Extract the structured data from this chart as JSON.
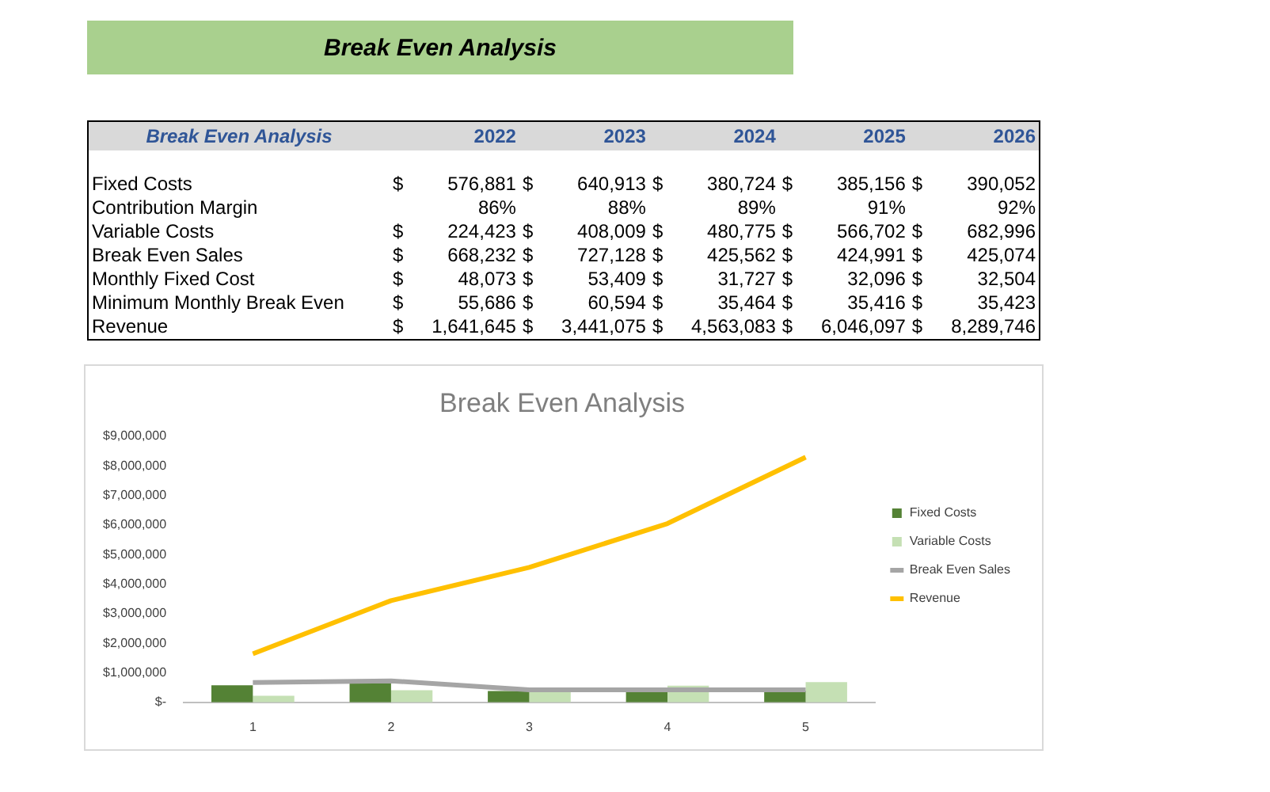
{
  "chart_data": [
    {
      "type": "heatmap",
      "title": "Break Even Analysis",
      "subtitle": "Break Even Analysis",
      "categories": [
        "2022",
        "2023",
        "2024",
        "2025",
        "2026"
      ],
      "y_categories": [
        "Fixed Costs",
        "Contribution Margin",
        "Variable Costs",
        "Break Even Sales",
        "Monthly Fixed Cost",
        "Minimum Monthly Break Even",
        "Revenue"
      ],
      "cells": [
        [
          576881,
          640913,
          380724,
          385156,
          390052
        ],
        [
          86,
          88,
          89,
          91,
          92
        ],
        [
          224423,
          408009,
          480775,
          566702,
          682996
        ],
        [
          668232,
          727128,
          425562,
          424991,
          425074
        ],
        [
          48073,
          53409,
          31727,
          32096,
          32504
        ],
        [
          55686,
          60594,
          35464,
          35416,
          35423
        ],
        [
          1641645,
          3441075,
          4563083,
          6046097,
          8289746
        ]
      ],
      "cell_labels": [
        [
          "$ 576,881",
          "$ 640,913",
          "$ 380,724",
          "$ 385,156",
          "$ 390,052"
        ],
        [
          "86%",
          "88%",
          "89%",
          "91%",
          "92%"
        ],
        [
          "$ 224,423",
          "$ 408,009",
          "$ 480,775",
          "$ 566,702",
          "$ 682,996"
        ],
        [
          "$ 668,232",
          "$ 727,128",
          "$ 425,562",
          "$ 424,991",
          "$ 425,074"
        ],
        [
          "$ 48,073",
          "$ 53,409",
          "$ 31,727",
          "$ 32,096",
          "$ 32,504"
        ],
        [
          "$ 55,686",
          "$ 60,594",
          "$ 35,464",
          "$ 35,416",
          "$ 35,423"
        ],
        [
          "$ 1,641,645",
          "$ 3,441,075",
          "$ 4,563,083",
          "$ 6,046,097",
          "$ 8,289,746"
        ]
      ]
    },
    {
      "type": "bar",
      "title": "Break Even Analysis",
      "categories": [
        "1",
        "2",
        "3",
        "4",
        "5"
      ],
      "legend": "right",
      "ylim": [
        0,
        9000000
      ],
      "yticks": [
        {
          "value": 0,
          "label": "$-"
        },
        {
          "value": 1000000,
          "label": "$1,000,000"
        },
        {
          "value": 2000000,
          "label": "$2,000,000"
        },
        {
          "value": 3000000,
          "label": "$3,000,000"
        },
        {
          "value": 4000000,
          "label": "$4,000,000"
        },
        {
          "value": 5000000,
          "label": "$5,000,000"
        },
        {
          "value": 6000000,
          "label": "$6,000,000"
        },
        {
          "value": 7000000,
          "label": "$7,000,000"
        },
        {
          "value": 8000000,
          "label": "$8,000,000"
        },
        {
          "value": 9000000,
          "label": "$9,000,000"
        }
      ],
      "series": [
        {
          "name": "Fixed Costs",
          "color": "#548235",
          "values": [
            576881,
            640913,
            380724,
            385156,
            390052
          ]
        },
        {
          "name": "Variable Costs",
          "color": "#c5e0b4",
          "values": [
            224423,
            408009,
            480775,
            566702,
            682996
          ]
        },
        {
          "name": "Break Even Sales",
          "type": "line",
          "color": "#a5a5a5",
          "values": [
            668232,
            727128,
            425562,
            424991,
            425074
          ]
        },
        {
          "name": "Revenue",
          "type": "line",
          "color": "#ffc000",
          "values": [
            1641645,
            3441075,
            4563083,
            6046097,
            8289746
          ]
        }
      ]
    }
  ]
}
